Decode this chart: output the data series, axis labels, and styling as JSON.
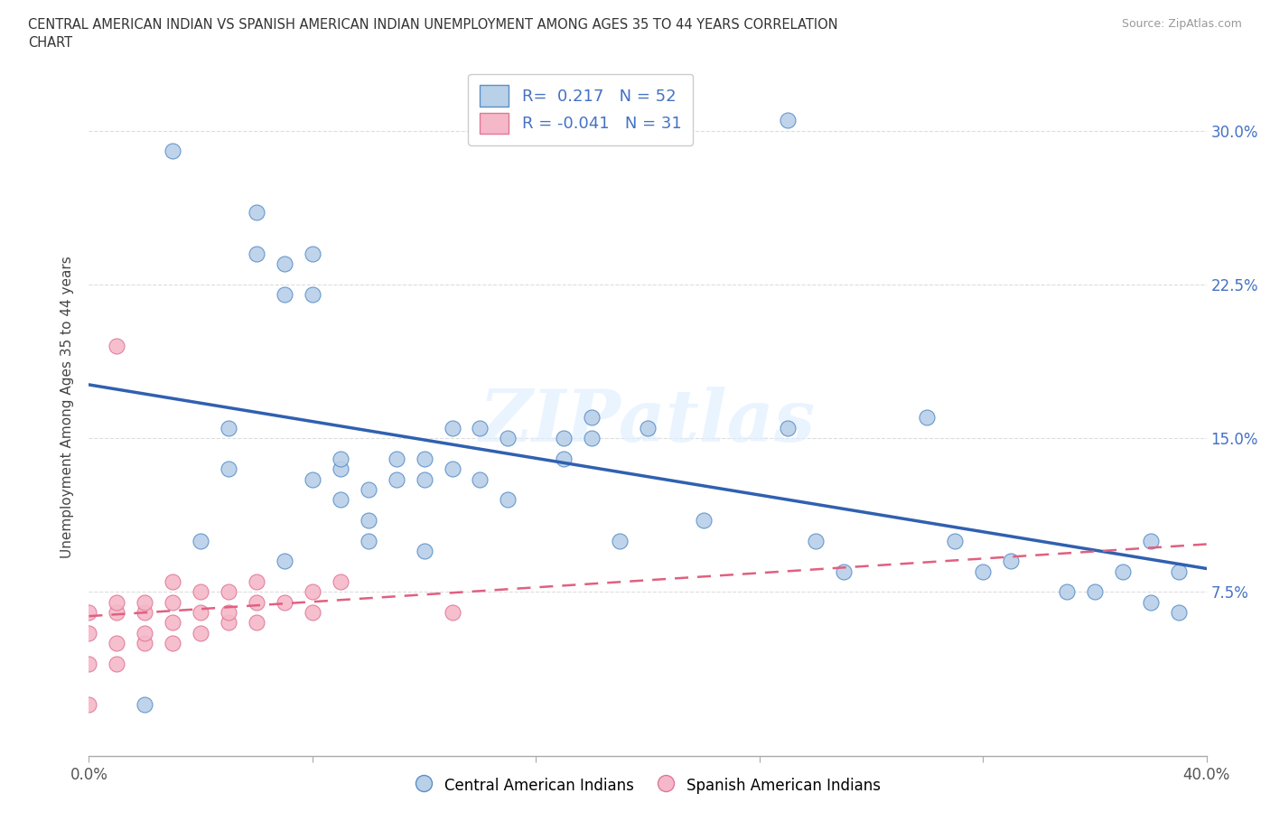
{
  "title_line1": "CENTRAL AMERICAN INDIAN VS SPANISH AMERICAN INDIAN UNEMPLOYMENT AMONG AGES 35 TO 44 YEARS CORRELATION",
  "title_line2": "CHART",
  "source_text": "Source: ZipAtlas.com",
  "ylabel": "Unemployment Among Ages 35 to 44 years",
  "xlim": [
    0.0,
    0.4
  ],
  "ylim": [
    -0.005,
    0.335
  ],
  "xticks": [
    0.0,
    0.08,
    0.16,
    0.24,
    0.32,
    0.4
  ],
  "xticklabels": [
    "0.0%",
    "",
    "",
    "",
    "",
    "40.0%"
  ],
  "yticks": [
    0.0,
    0.075,
    0.15,
    0.225,
    0.3
  ],
  "yticklabels_right": [
    "",
    "7.5%",
    "15.0%",
    "22.5%",
    "30.0%"
  ],
  "blue_R": 0.217,
  "blue_N": 52,
  "pink_R": -0.041,
  "pink_N": 31,
  "blue_scatter_color": "#b8d0e8",
  "blue_edge_color": "#5b8fc9",
  "pink_scatter_color": "#f5b8c8",
  "pink_edge_color": "#e07898",
  "blue_line_color": "#3060b0",
  "pink_line_color": "#e06080",
  "watermark_text": "ZIPatlas",
  "legend_label_blue": "Central American Indians",
  "legend_label_pink": "Spanish American Indians",
  "blue_x": [
    0.02,
    0.03,
    0.04,
    0.05,
    0.05,
    0.06,
    0.06,
    0.07,
    0.07,
    0.07,
    0.08,
    0.08,
    0.08,
    0.09,
    0.09,
    0.09,
    0.1,
    0.1,
    0.1,
    0.11,
    0.11,
    0.12,
    0.12,
    0.12,
    0.13,
    0.13,
    0.14,
    0.14,
    0.15,
    0.15,
    0.17,
    0.17,
    0.18,
    0.18,
    0.19,
    0.2,
    0.22,
    0.25,
    0.26,
    0.27,
    0.3,
    0.31,
    0.32,
    0.33,
    0.35,
    0.36,
    0.37,
    0.38,
    0.38,
    0.39,
    0.25,
    0.39
  ],
  "blue_y": [
    0.02,
    0.29,
    0.1,
    0.155,
    0.135,
    0.24,
    0.26,
    0.22,
    0.235,
    0.09,
    0.13,
    0.22,
    0.24,
    0.12,
    0.135,
    0.14,
    0.1,
    0.125,
    0.11,
    0.13,
    0.14,
    0.13,
    0.095,
    0.14,
    0.135,
    0.155,
    0.13,
    0.155,
    0.12,
    0.15,
    0.14,
    0.15,
    0.15,
    0.16,
    0.1,
    0.155,
    0.11,
    0.155,
    0.1,
    0.085,
    0.16,
    0.1,
    0.085,
    0.09,
    0.075,
    0.075,
    0.085,
    0.1,
    0.07,
    0.085,
    0.305,
    0.065
  ],
  "pink_x": [
    0.0,
    0.0,
    0.0,
    0.0,
    0.01,
    0.01,
    0.01,
    0.01,
    0.02,
    0.02,
    0.02,
    0.02,
    0.03,
    0.03,
    0.03,
    0.03,
    0.04,
    0.04,
    0.04,
    0.05,
    0.05,
    0.05,
    0.06,
    0.06,
    0.06,
    0.07,
    0.08,
    0.08,
    0.09,
    0.13,
    0.01
  ],
  "pink_y": [
    0.02,
    0.04,
    0.055,
    0.065,
    0.04,
    0.05,
    0.065,
    0.07,
    0.05,
    0.055,
    0.065,
    0.07,
    0.05,
    0.06,
    0.07,
    0.08,
    0.055,
    0.065,
    0.075,
    0.06,
    0.065,
    0.075,
    0.06,
    0.07,
    0.08,
    0.07,
    0.065,
    0.075,
    0.08,
    0.065,
    0.195
  ]
}
